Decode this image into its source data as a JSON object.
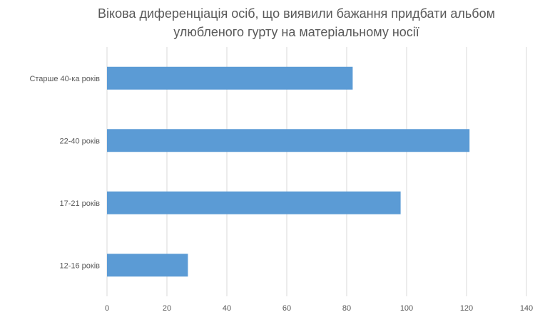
{
  "chart_data": {
    "type": "bar",
    "orientation": "horizontal",
    "title": [
      "Вікова диференціація осіб, що виявили бажання придбати альбом",
      "улюбленого гурту на матеріальному носії"
    ],
    "categories": [
      "Старше 40-ка років",
      "22-40 років",
      "17-21 років",
      "12-16 років"
    ],
    "values": [
      82,
      121,
      98,
      27
    ],
    "xlim": [
      0,
      140
    ],
    "xticks": [
      0,
      20,
      40,
      60,
      80,
      100,
      120,
      140
    ],
    "grid": true,
    "legend": "none",
    "bar_color": "#5b9bd5",
    "grid_color": "#d9d9d9"
  }
}
